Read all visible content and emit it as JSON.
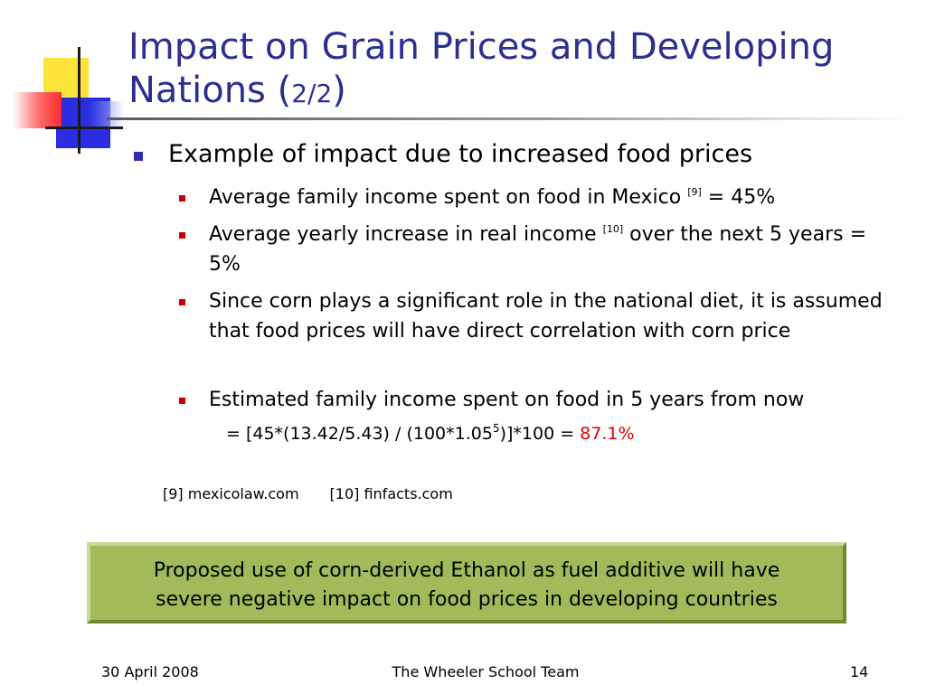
{
  "slide": {
    "title_main": "Impact on Grain Prices and Developing Nations (",
    "title_fraction": "2/2",
    "title_close": ")"
  },
  "bullets": {
    "level1": "Example of impact due to increased food prices",
    "items": [
      {
        "pre": "Average family income spent on food in Mexico ",
        "ref": "[9]",
        "post": " = 45%"
      },
      {
        "pre": "Average yearly increase in real income ",
        "ref": "[10]",
        "post": " over the next 5 years = 5%"
      },
      {
        "text": "Since corn plays a significant role in the national diet, it is assumed that food prices will have direct correlation with corn price"
      },
      {
        "text": "Estimated family income spent on food in 5 years from now"
      }
    ],
    "formula": {
      "pre": "= [45*(13.42/5.43) / (100*1.05",
      "exponent": "5",
      "post": ")]*100 = ",
      "result": "87.1%"
    }
  },
  "references": {
    "ref9": "[9] mexicolaw.com",
    "ref10": "[10] finfacts.com"
  },
  "conclusion": {
    "line1": "Proposed use of corn-derived Ethanol as fuel additive will have",
    "line2": "severe negative impact on food prices in developing countries"
  },
  "footer": {
    "date": "30 April 2008",
    "team": "The Wheeler School Team",
    "page": "14"
  },
  "colors": {
    "title": "#2b2f8f",
    "bullet_level1": "#2a2eaa",
    "bullet_level2": "#cc0000",
    "highlight_result": "#e00000",
    "conclusion_box": "#a1bb5a"
  }
}
